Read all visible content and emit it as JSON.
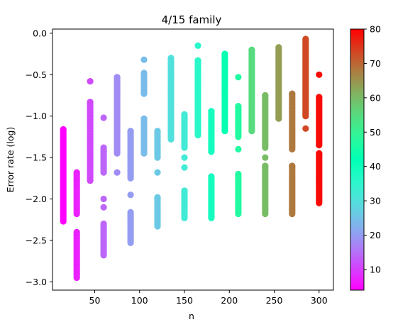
{
  "chart_data": {
    "type": "scatter",
    "title": "4/15 family",
    "xlabel": "n",
    "ylabel": "Error rate (log)",
    "xlim": [
      3,
      316
    ],
    "ylim": [
      -3.1,
      0.05
    ],
    "grid": false,
    "legend": "none",
    "x_ticks": [
      50,
      100,
      150,
      200,
      250,
      300
    ],
    "y_ticks": [
      0.0,
      -0.5,
      -1.0,
      -1.5,
      -2.0,
      -2.5,
      -3.0
    ],
    "x_tick_labels": [
      "50",
      "100",
      "150",
      "200",
      "250",
      "300"
    ],
    "y_tick_labels": [
      "0.0",
      "−0.5",
      "−1.0",
      "−1.5",
      "−2.0",
      "−2.5",
      "−3.0"
    ],
    "colorbar": {
      "colormap": "rainbow",
      "range": [
        4,
        80
      ],
      "ticks": [
        10,
        20,
        30,
        40,
        50,
        60,
        70,
        80
      ],
      "tick_labels": [
        "10",
        "20",
        "30",
        "40",
        "50",
        "60",
        "70",
        "80"
      ]
    },
    "point_sets": [
      {
        "x": 15,
        "color_value": 4,
        "intervals": [
          [
            -2.27,
            -1.16
          ]
        ]
      },
      {
        "x": 30,
        "color_value": 7,
        "intervals": [
          [
            -2.95,
            -2.4
          ],
          [
            -2.18,
            -1.68
          ]
        ]
      },
      {
        "x": 45,
        "color_value": 11,
        "intervals": [
          [
            -1.78,
            -1.18
          ],
          [
            -1.15,
            -0.83
          ]
        ],
        "extra_y": [
          -0.58
        ]
      },
      {
        "x": 60,
        "color_value": 14,
        "intervals": [
          [
            -2.68,
            -2.3
          ],
          [
            -1.68,
            -1.38
          ]
        ],
        "extra_y": [
          -2.0,
          -2.1,
          -1.02
        ]
      },
      {
        "x": 75,
        "color_value": 18,
        "intervals": [
          [
            -1.45,
            -0.53
          ]
        ],
        "extra_y": [
          -1.68
        ]
      },
      {
        "x": 90,
        "color_value": 20,
        "intervals": [
          [
            -2.53,
            -2.16
          ],
          [
            -1.75,
            -1.18
          ]
        ],
        "extra_y": [
          -1.95
        ]
      },
      {
        "x": 105,
        "color_value": 24,
        "intervals": [
          [
            -1.45,
            -1.03
          ],
          [
            -0.73,
            -0.48
          ]
        ],
        "extra_y": [
          -0.32
        ]
      },
      {
        "x": 120,
        "color_value": 26,
        "intervals": [
          [
            -2.33,
            -1.98
          ],
          [
            -1.5,
            -1.18
          ]
        ],
        "extra_y": [
          -1.68
        ]
      },
      {
        "x": 135,
        "color_value": 30,
        "intervals": [
          [
            -1.28,
            -0.3
          ]
        ]
      },
      {
        "x": 150,
        "color_value": 32,
        "intervals": [
          [
            -2.23,
            -1.9
          ],
          [
            -1.38,
            -0.98
          ]
        ],
        "extra_y": [
          -1.5,
          -1.62
        ]
      },
      {
        "x": 165,
        "color_value": 36,
        "intervals": [
          [
            -1.23,
            -0.33
          ]
        ],
        "extra_y": [
          -0.15
        ]
      },
      {
        "x": 180,
        "color_value": 39,
        "intervals": [
          [
            -2.23,
            -1.73
          ],
          [
            -1.43,
            -0.94
          ]
        ]
      },
      {
        "x": 195,
        "color_value": 43,
        "intervals": [
          [
            -1.18,
            -0.25
          ]
        ]
      },
      {
        "x": 210,
        "color_value": 47,
        "intervals": [
          [
            -2.18,
            -1.7
          ],
          [
            -1.25,
            -0.88
          ]
        ],
        "extra_y": [
          -1.4,
          -0.53
        ]
      },
      {
        "x": 225,
        "color_value": 55,
        "intervals": [
          [
            -1.18,
            -0.2
          ]
        ]
      },
      {
        "x": 240,
        "color_value": 60,
        "intervals": [
          [
            -2.18,
            -1.6
          ],
          [
            -1.38,
            -0.75
          ]
        ],
        "extra_y": [
          -1.5
        ]
      },
      {
        "x": 255,
        "color_value": 64,
        "intervals": [
          [
            -1.03,
            -0.17
          ]
        ]
      },
      {
        "x": 270,
        "color_value": 68,
        "intervals": [
          [
            -2.18,
            -1.6
          ],
          [
            -1.4,
            -0.73
          ]
        ]
      },
      {
        "x": 285,
        "color_value": 73,
        "intervals": [
          [
            -1.0,
            -0.07
          ]
        ],
        "extra_y": [
          -1.15
        ]
      },
      {
        "x": 300,
        "color_value": 79,
        "intervals": [
          [
            -2.05,
            -1.45
          ],
          [
            -1.35,
            -0.77
          ]
        ],
        "extra_y": [
          -0.5
        ]
      }
    ]
  }
}
